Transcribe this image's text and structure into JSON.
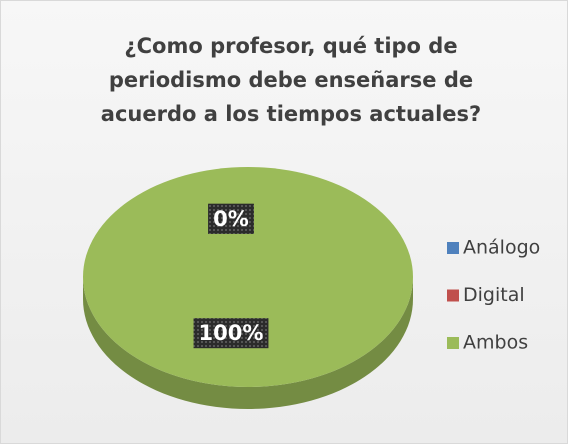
{
  "chart_data": {
    "type": "pie",
    "title": "¿Como profesor, qué tipo de periodismo debe enseñarse de acuerdo a los tiempos actuales?",
    "categories": [
      "Análogo",
      "Digital",
      "Ambos"
    ],
    "values": [
      0,
      0,
      100
    ],
    "value_labels": [
      "0%",
      "0%",
      "100%"
    ],
    "colors": [
      "#4f81bd",
      "#c0504d",
      "#9bbb59"
    ],
    "legend": "right"
  }
}
